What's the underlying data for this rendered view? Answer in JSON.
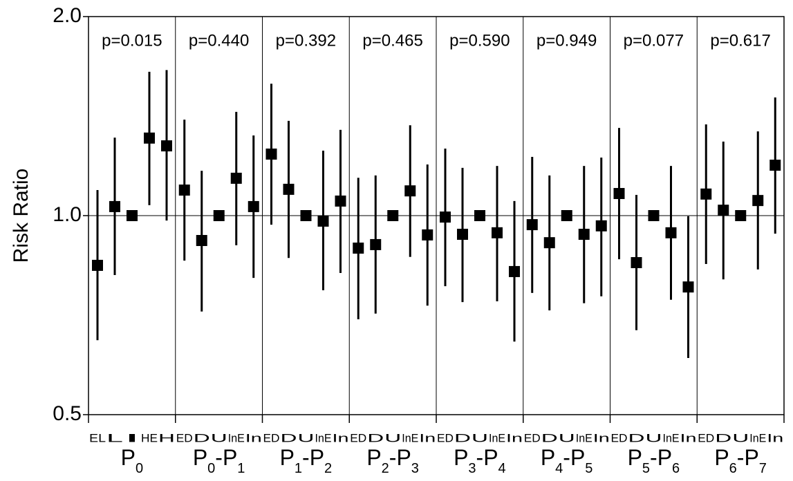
{
  "chart_data": {
    "type": "errorbar",
    "y_label": "Risk Ratio",
    "log_y": true,
    "ylim": [
      0.5,
      2.0
    ],
    "yticks": [
      0.5,
      {
        "value": 1,
        "label": "1.0"
      },
      {
        "value": 2,
        "label": "2.0"
      }
    ],
    "reference_line": 1,
    "color": "#000000",
    "groups": [
      {
        "label": "P0",
        "annotation": "p=0.015",
        "categories": [
          "EL",
          "L",
          "I",
          "HE",
          "H"
        ],
        "values": [
          0.841,
          1.032,
          1.0,
          1.31,
          1.275
        ],
        "lower": [
          0.648,
          0.813,
          null,
          1.037,
          0.983
        ],
        "upper": [
          1.093,
          1.312,
          null,
          1.65,
          1.66
        ]
      },
      {
        "label": "P0-P1",
        "annotation": "p=0.440",
        "categories": [
          "ED",
          "D",
          "U",
          "InE",
          "In"
        ],
        "values": [
          1.093,
          0.917,
          1.0,
          1.139,
          1.032
        ],
        "lower": [
          0.855,
          0.716,
          null,
          0.902,
          0.805
        ],
        "upper": [
          1.397,
          1.169,
          null,
          1.435,
          1.322
        ]
      },
      {
        "label": "P1-P2",
        "annotation": "p=0.392",
        "categories": [
          "ED",
          "D",
          "U",
          "InE",
          "In"
        ],
        "values": [
          1.239,
          1.096,
          1.0,
          0.981,
          1.052
        ],
        "lower": [
          0.969,
          0.863,
          null,
          0.771,
          0.819
        ],
        "upper": [
          1.583,
          1.391,
          null,
          1.254,
          1.348
        ]
      },
      {
        "label": "P2-P3",
        "annotation": "p=0.465",
        "categories": [
          "ED",
          "D",
          "U",
          "InE",
          "In"
        ],
        "values": [
          0.893,
          0.904,
          1.0,
          1.09,
          0.935
        ],
        "lower": [
          0.697,
          0.711,
          null,
          0.866,
          0.731
        ],
        "upper": [
          1.141,
          1.15,
          null,
          1.37,
          1.195
        ]
      },
      {
        "label": "P3-P4",
        "annotation": "p=0.590",
        "categories": [
          "ED",
          "D",
          "U",
          "InE",
          "In"
        ],
        "values": [
          0.995,
          0.937,
          1.0,
          0.942,
          0.823
        ],
        "lower": [
          0.782,
          0.74,
          null,
          0.742,
          0.645
        ],
        "upper": [
          1.263,
          1.181,
          null,
          1.189,
          1.052
        ]
      },
      {
        "label": "P4-P5",
        "annotation": "p=0.949",
        "categories": [
          "ED",
          "D",
          "U",
          "InE",
          "In"
        ],
        "values": [
          0.969,
          0.91,
          1.0,
          0.937,
          0.965
        ],
        "lower": [
          0.764,
          0.719,
          null,
          0.737,
          0.755
        ],
        "upper": [
          1.227,
          1.15,
          null,
          1.189,
          1.224
        ]
      },
      {
        "label": "P5-P6",
        "annotation": "p=0.077",
        "categories": [
          "ED",
          "D",
          "U",
          "InE",
          "In"
        ],
        "values": [
          1.08,
          0.849,
          1.0,
          0.942,
          0.78
        ],
        "lower": [
          0.859,
          0.671,
          null,
          0.746,
          0.609
        ],
        "upper": [
          1.357,
          1.075,
          null,
          1.189,
          0.998
        ]
      },
      {
        "label": "P6-P7",
        "annotation": "p=0.617",
        "categories": [
          "ED",
          "D",
          "U",
          "InE",
          "In"
        ],
        "values": [
          1.078,
          1.019,
          1.0,
          1.054,
          1.192
        ],
        "lower": [
          0.845,
          0.801,
          null,
          0.829,
          0.939
        ],
        "upper": [
          1.374,
          1.294,
          null,
          1.341,
          1.509
        ]
      }
    ]
  }
}
